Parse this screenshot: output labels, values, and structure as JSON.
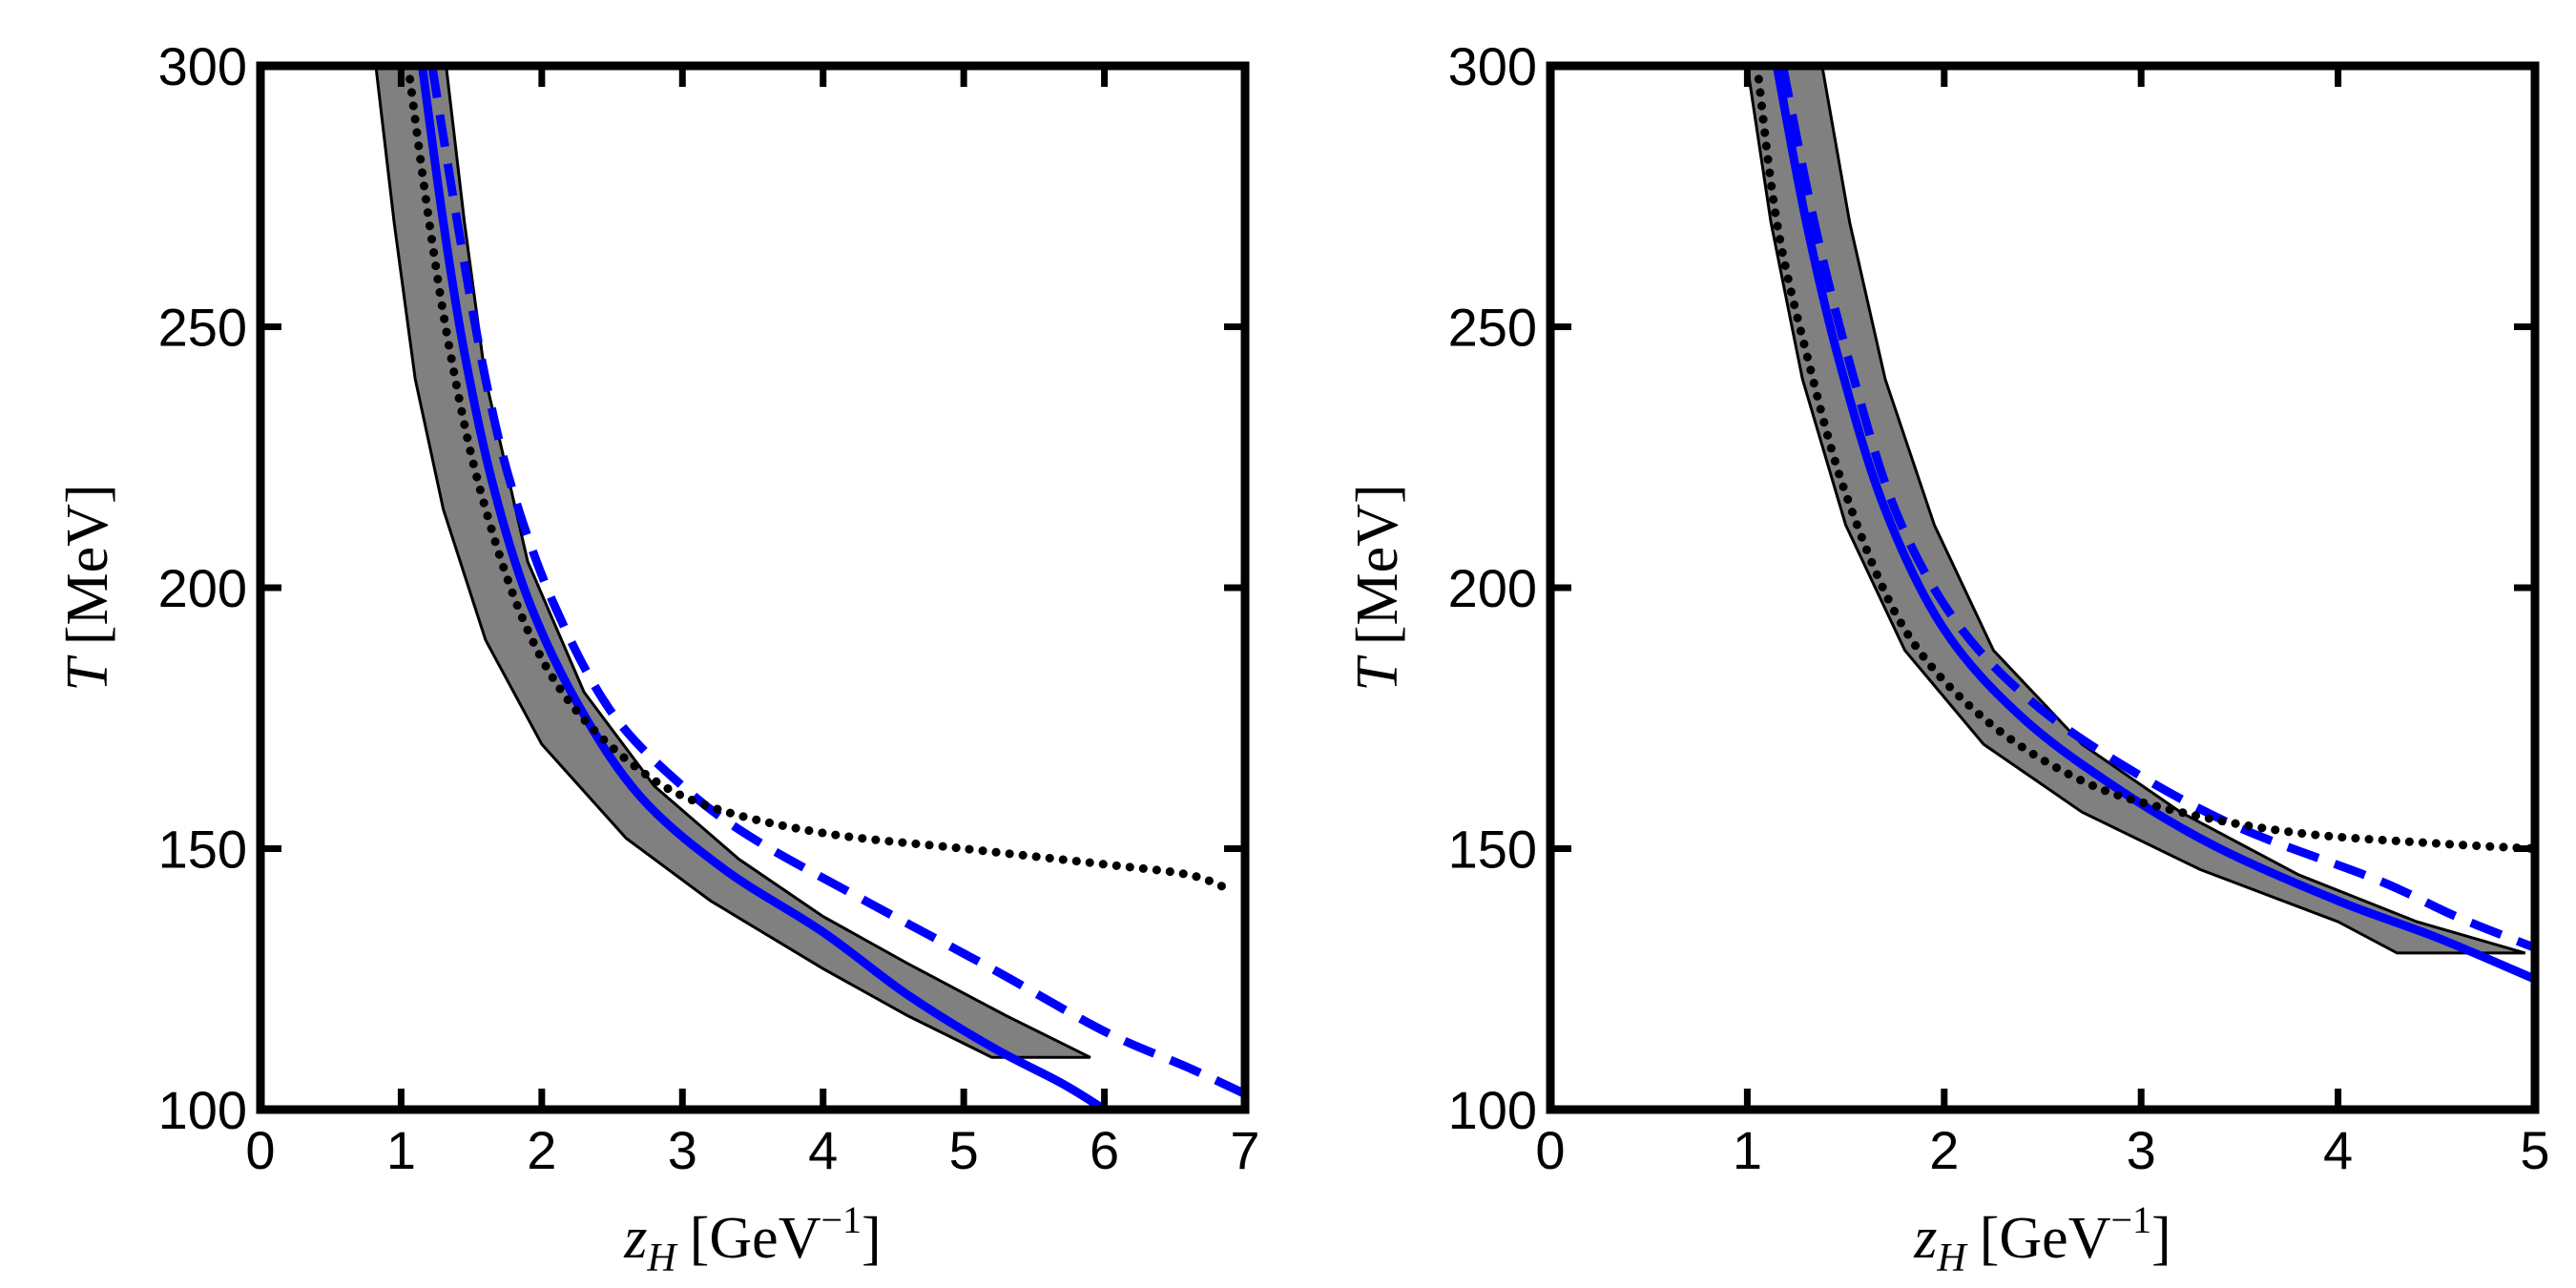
{
  "chart_data": [
    {
      "type": "line",
      "panel": "left",
      "xlabel": {
        "sym": "z",
        "sub": "H",
        "unit": "[GeV",
        "sup": "−1",
        "close": "]"
      },
      "ylabel": {
        "sym": "T",
        "unit": "[MeV]"
      },
      "xlim": [
        0,
        7
      ],
      "ylim": [
        100,
        300
      ],
      "xticks": [
        "0",
        "1",
        "2",
        "3",
        "4",
        "5",
        "6",
        "7"
      ],
      "yticks": [
        "100",
        "150",
        "200",
        "250",
        "300"
      ],
      "band": {
        "name": "gray uncertainty band",
        "color": "#808080",
        "lower": [
          [
            0.82,
            300
          ],
          [
            0.95,
            270
          ],
          [
            1.1,
            240
          ],
          [
            1.3,
            215
          ],
          [
            1.6,
            190
          ],
          [
            2.0,
            170
          ],
          [
            2.6,
            152
          ],
          [
            3.2,
            140
          ],
          [
            4.0,
            127
          ],
          [
            4.6,
            118
          ],
          [
            5.2,
            110
          ]
        ],
        "upper": [
          [
            5.9,
            110
          ],
          [
            5.3,
            118
          ],
          [
            4.6,
            128
          ],
          [
            4.0,
            137
          ],
          [
            3.4,
            148
          ],
          [
            2.8,
            162
          ],
          [
            2.3,
            180
          ],
          [
            1.9,
            205
          ],
          [
            1.6,
            240
          ],
          [
            1.45,
            270
          ],
          [
            1.32,
            300
          ]
        ]
      },
      "series": [
        {
          "name": "blue solid",
          "style": "solid",
          "color": "#0000ff",
          "points": [
            [
              1.15,
              300
            ],
            [
              1.3,
              270
            ],
            [
              1.45,
              245
            ],
            [
              1.65,
              220
            ],
            [
              1.9,
              198
            ],
            [
              2.25,
              178
            ],
            [
              2.7,
              160
            ],
            [
              3.3,
              146
            ],
            [
              4.0,
              134
            ],
            [
              4.6,
              122
            ],
            [
              5.2,
              112
            ],
            [
              5.7,
              105
            ],
            [
              6.0,
              100
            ]
          ]
        },
        {
          "name": "blue dashed",
          "style": "dashed",
          "color": "#0000ff",
          "points": [
            [
              1.22,
              300
            ],
            [
              1.4,
              270
            ],
            [
              1.6,
              240
            ],
            [
              1.8,
              218
            ],
            [
              2.1,
              196
            ],
            [
              2.5,
              176
            ],
            [
              3.0,
              162
            ],
            [
              3.5,
              152
            ],
            [
              4.3,
              140
            ],
            [
              5.2,
              127
            ],
            [
              6.0,
              115
            ],
            [
              6.6,
              108
            ],
            [
              7.0,
              103
            ]
          ]
        },
        {
          "name": "black dotted",
          "style": "dotted",
          "color": "#000000",
          "points": [
            [
              1.05,
              300
            ],
            [
              1.2,
              270
            ],
            [
              1.35,
              245
            ],
            [
              1.55,
              220
            ],
            [
              1.85,
              195
            ],
            [
              2.2,
              178
            ],
            [
              2.7,
              165
            ],
            [
              3.2,
              158
            ],
            [
              4.0,
              153
            ],
            [
              5.0,
              150
            ],
            [
              6.0,
              147
            ],
            [
              6.6,
              145
            ],
            [
              6.9,
              142
            ]
          ]
        }
      ]
    },
    {
      "type": "line",
      "panel": "right",
      "xlabel": {
        "sym": "z",
        "sub": "H",
        "unit": "[GeV",
        "sup": "−1",
        "close": "]"
      },
      "ylabel": {
        "sym": "T",
        "unit": "[MeV]"
      },
      "xlim": [
        0,
        5
      ],
      "ylim": [
        100,
        300
      ],
      "xticks": [
        "0",
        "1",
        "2",
        "3",
        "4",
        "5"
      ],
      "yticks": [
        "100",
        "150",
        "200",
        "250",
        "300"
      ],
      "band": {
        "name": "gray uncertainty band",
        "color": "#808080",
        "lower": [
          [
            1.0,
            300
          ],
          [
            1.12,
            270
          ],
          [
            1.28,
            240
          ],
          [
            1.5,
            212
          ],
          [
            1.8,
            188
          ],
          [
            2.2,
            170
          ],
          [
            2.7,
            157
          ],
          [
            3.3,
            146
          ],
          [
            4.0,
            136
          ],
          [
            4.3,
            130
          ]
        ],
        "upper": [
          [
            4.95,
            130
          ],
          [
            4.4,
            136
          ],
          [
            3.8,
            145
          ],
          [
            3.2,
            157
          ],
          [
            2.7,
            170
          ],
          [
            2.25,
            188
          ],
          [
            1.95,
            212
          ],
          [
            1.7,
            240
          ],
          [
            1.52,
            270
          ],
          [
            1.38,
            300
          ]
        ]
      },
      "series": [
        {
          "name": "blue solid",
          "style": "solid",
          "color": "#0000ff",
          "points": [
            [
              1.15,
              300
            ],
            [
              1.3,
              270
            ],
            [
              1.47,
              243
            ],
            [
              1.7,
              215
            ],
            [
              2.0,
              192
            ],
            [
              2.4,
              175
            ],
            [
              2.9,
              161
            ],
            [
              3.4,
              150
            ],
            [
              4.0,
              140
            ],
            [
              4.5,
              133
            ],
            [
              5.0,
              125
            ]
          ]
        },
        {
          "name": "blue dashed",
          "style": "dashed",
          "color": "#0000ff",
          "points": [
            [
              1.18,
              300
            ],
            [
              1.34,
              270
            ],
            [
              1.52,
              243
            ],
            [
              1.75,
              215
            ],
            [
              2.05,
              194
            ],
            [
              2.45,
              178
            ],
            [
              2.95,
              165
            ],
            [
              3.5,
              154
            ],
            [
              4.2,
              144
            ],
            [
              4.6,
              137
            ],
            [
              5.0,
              131
            ]
          ]
        },
        {
          "name": "black dotted",
          "style": "dotted",
          "color": "#000000",
          "points": [
            [
              1.05,
              300
            ],
            [
              1.15,
              270
            ],
            [
              1.3,
              245
            ],
            [
              1.5,
              218
            ],
            [
              1.8,
              192
            ],
            [
              2.2,
              175
            ],
            [
              2.7,
              163
            ],
            [
              3.2,
              157
            ],
            [
              3.8,
              153
            ],
            [
              4.5,
              151
            ],
            [
              5.0,
              150
            ]
          ]
        }
      ]
    }
  ]
}
